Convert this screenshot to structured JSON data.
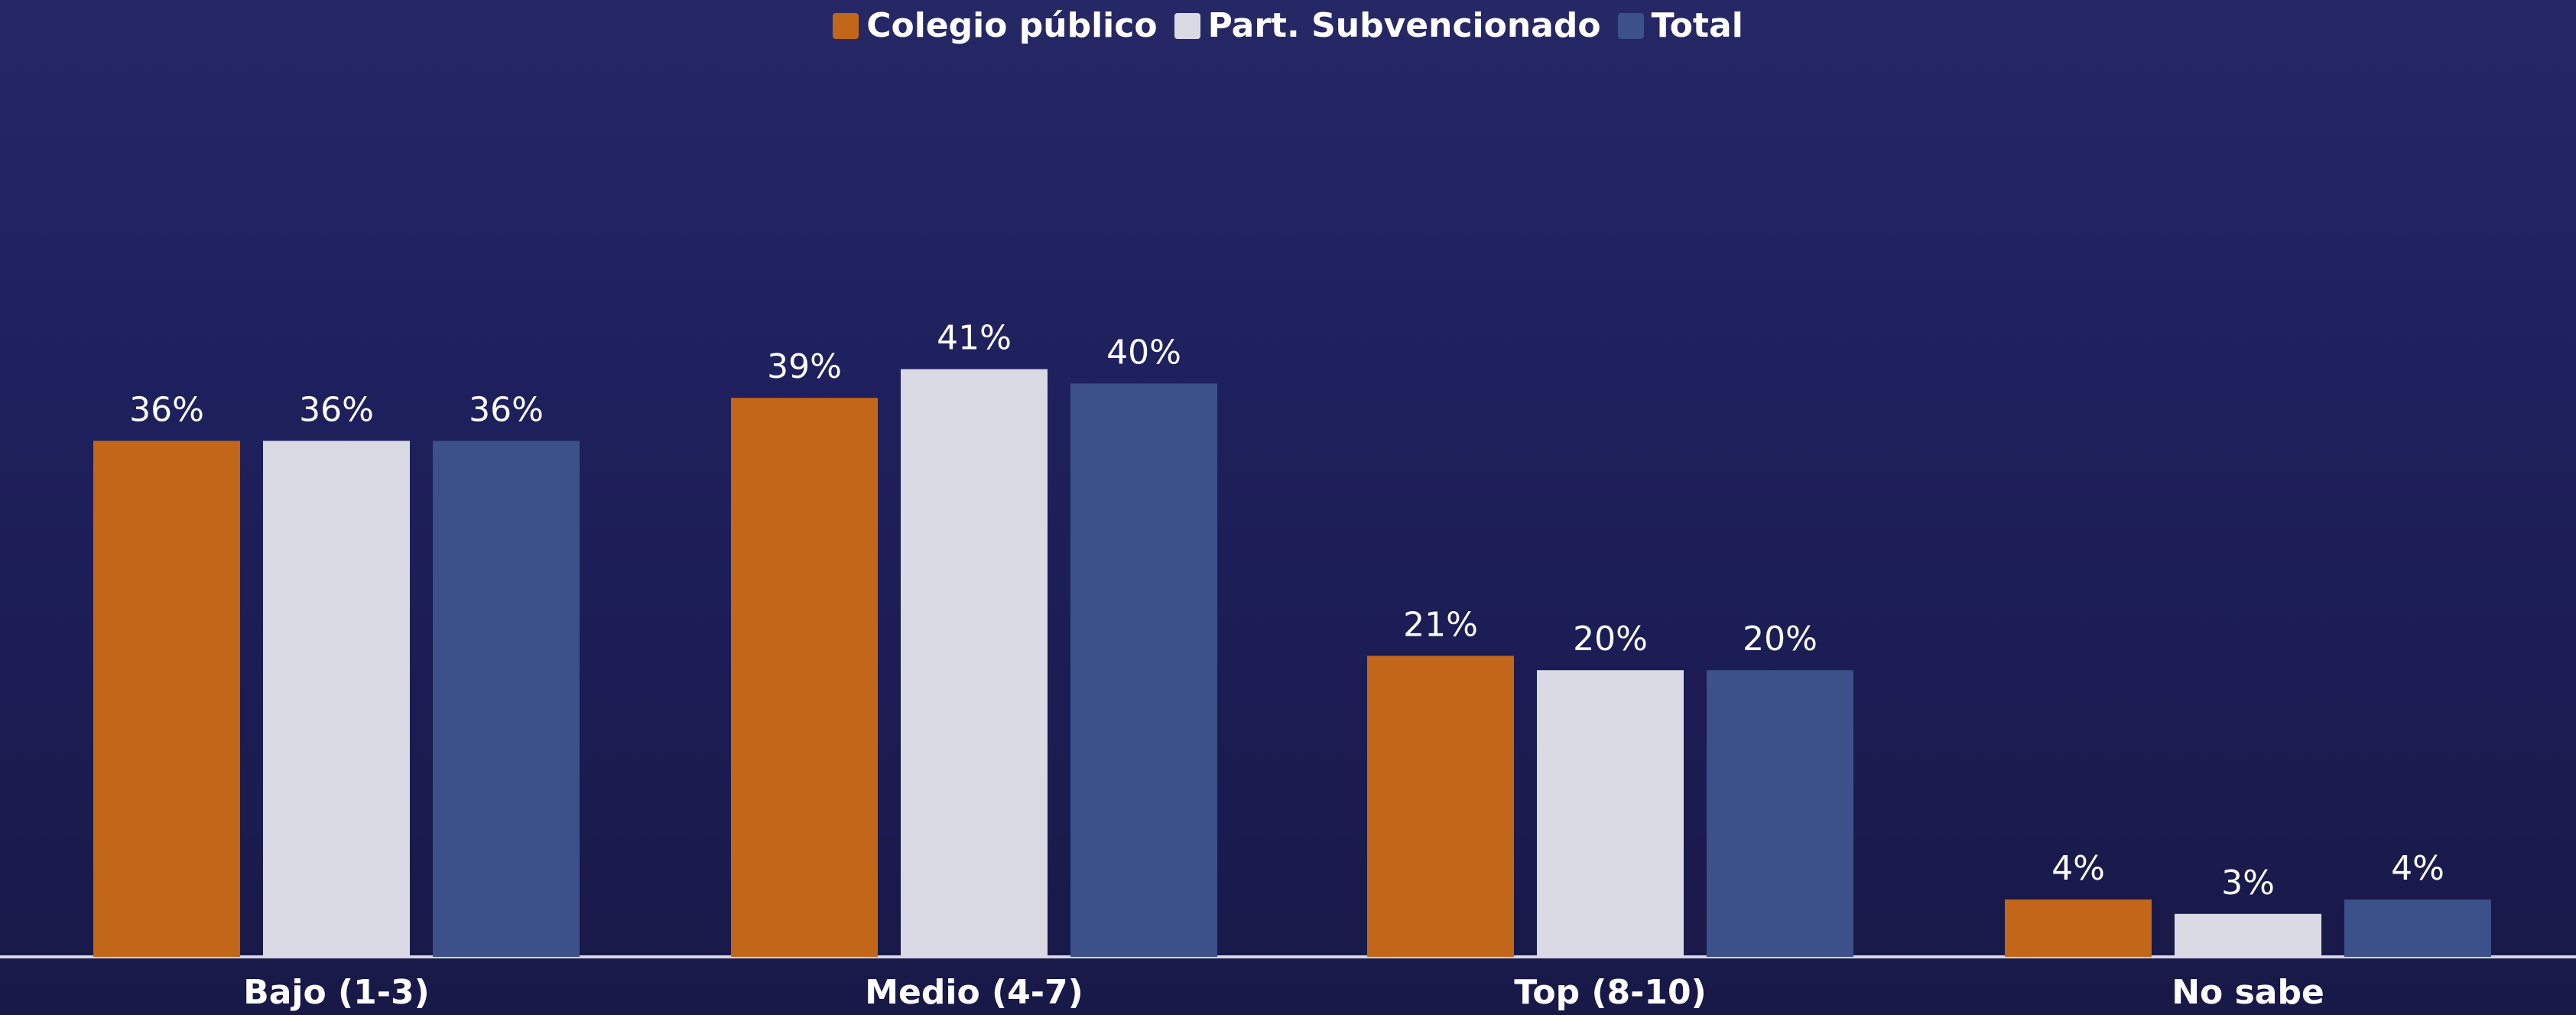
{
  "chart_data": {
    "type": "bar",
    "categories": [
      "Bajo (1-3)",
      "Medio (4-7)",
      "Top (8-10)",
      "No sabe"
    ],
    "series": [
      {
        "name": "Colegio público",
        "color": "#c2661a",
        "values": [
          36,
          39,
          21,
          4
        ],
        "value_labels": [
          "36%",
          "39%",
          "21%",
          "4%"
        ]
      },
      {
        "name": "Part. Subvencionado",
        "color": "#d9dae4",
        "values": [
          36,
          41,
          20,
          3
        ],
        "value_labels": [
          "36%",
          "41%",
          "20%",
          "3%"
        ]
      },
      {
        "name": "Total",
        "color": "#3c5089",
        "values": [
          36,
          40,
          20,
          4
        ],
        "value_labels": [
          "36%",
          "40%",
          "20%",
          "4%"
        ]
      }
    ],
    "legend": "top"
  }
}
